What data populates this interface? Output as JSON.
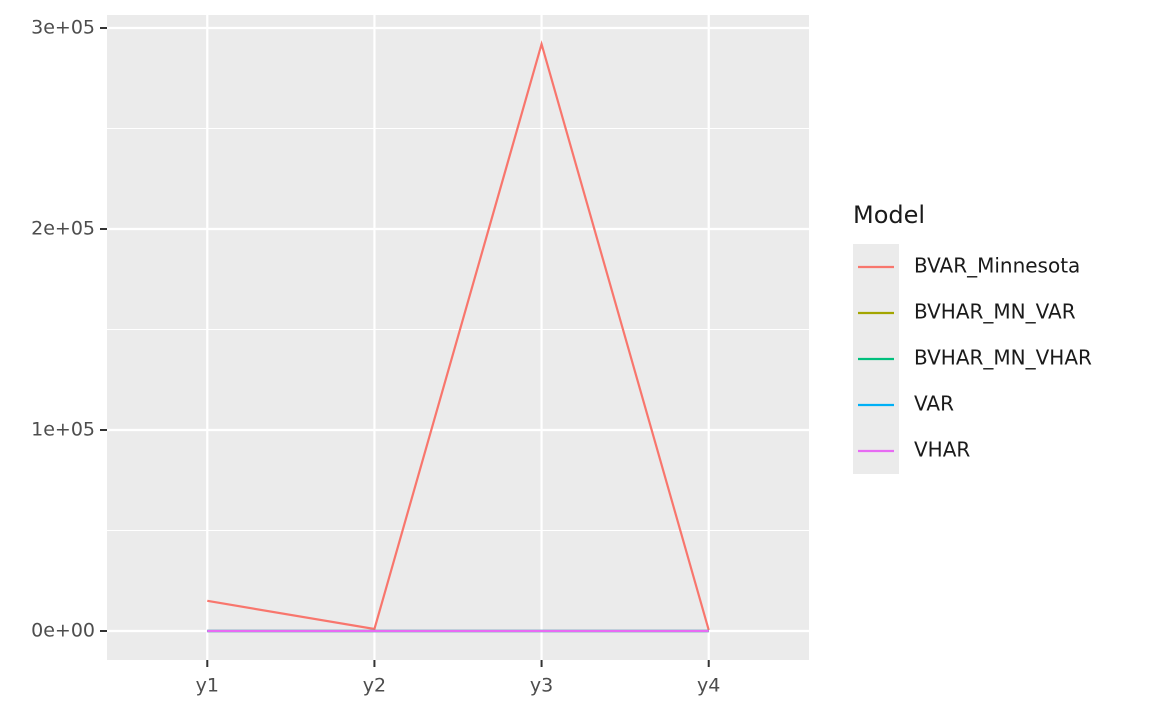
{
  "chart_data": {
    "type": "line",
    "categories": [
      "y1",
      "y2",
      "y3",
      "y4"
    ],
    "series": [
      {
        "name": "BVAR_Minnesota",
        "color": "#F8766D",
        "values": [
          15000,
          1000,
          292000,
          500
        ]
      },
      {
        "name": "BVHAR_MN_VAR",
        "color": "#A3A500",
        "values": [
          0,
          0,
          0,
          0
        ]
      },
      {
        "name": "BVHAR_MN_VHAR",
        "color": "#00BF7D",
        "values": [
          0,
          0,
          0,
          0
        ]
      },
      {
        "name": "VAR",
        "color": "#00B0F6",
        "values": [
          0,
          0,
          0,
          0
        ]
      },
      {
        "name": "VHAR",
        "color": "#E76BF3",
        "values": [
          0,
          0,
          0,
          0
        ]
      }
    ],
    "ylim": [
      -14430,
      306470
    ],
    "yticks": [
      {
        "value": 0,
        "label": "0e+00"
      },
      {
        "value": 100000,
        "label": "1e+05"
      },
      {
        "value": 200000,
        "label": "2e+05"
      },
      {
        "value": 300000,
        "label": "3e+05"
      }
    ],
    "yminor": [
      50000,
      150000,
      250000
    ],
    "grid": true,
    "legend_title": "Model",
    "legend": "right"
  }
}
